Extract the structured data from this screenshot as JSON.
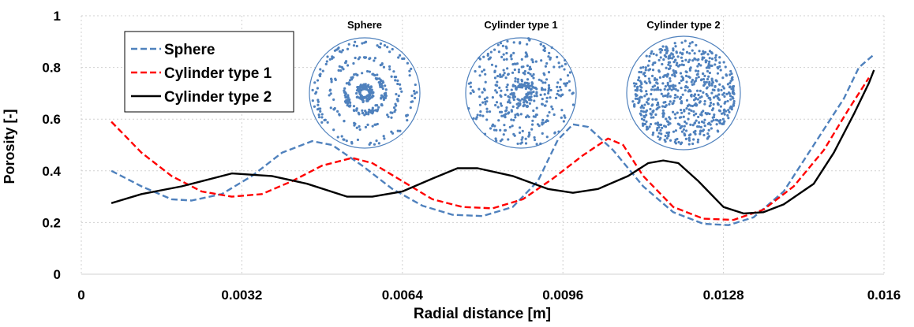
{
  "chart_data": {
    "type": "line",
    "xlabel": "Radial distance [m]",
    "ylabel": "Porosity [-]",
    "xlim": [
      0,
      0.016
    ],
    "xticks": [
      0,
      0.0032,
      0.0064,
      0.0096,
      0.0128,
      0.016
    ],
    "ylim": [
      0,
      1
    ],
    "yticks": [
      0,
      0.2,
      0.4,
      0.6,
      0.8,
      1
    ],
    "grid": true,
    "legend": "upper left",
    "annotations": [
      "Sphere",
      "Cylinder type 1",
      "Cylinder type 2"
    ],
    "series": [
      {
        "name": "Sphere",
        "color": "#4f81bd",
        "dash": "dashed",
        "x": [
          0.0006,
          0.0012,
          0.0018,
          0.0022,
          0.0028,
          0.0034,
          0.004,
          0.0046,
          0.005,
          0.0056,
          0.0062,
          0.0068,
          0.0074,
          0.008,
          0.0086,
          0.0091,
          0.0095,
          0.0098,
          0.0101,
          0.0106,
          0.0112,
          0.0118,
          0.0124,
          0.0129,
          0.0134,
          0.014,
          0.0146,
          0.0152,
          0.0155,
          0.0158
        ],
        "values": [
          0.4,
          0.34,
          0.29,
          0.285,
          0.31,
          0.38,
          0.47,
          0.515,
          0.5,
          0.42,
          0.33,
          0.265,
          0.23,
          0.225,
          0.26,
          0.36,
          0.52,
          0.58,
          0.57,
          0.48,
          0.34,
          0.24,
          0.195,
          0.19,
          0.22,
          0.32,
          0.5,
          0.68,
          0.8,
          0.85
        ]
      },
      {
        "name": "Cylinder type 1",
        "color": "#ff0000",
        "dash": "dashed",
        "x": [
          0.0006,
          0.0012,
          0.0018,
          0.0024,
          0.003,
          0.0036,
          0.0042,
          0.0048,
          0.0054,
          0.0058,
          0.0064,
          0.007,
          0.0076,
          0.0082,
          0.0088,
          0.0094,
          0.01,
          0.0105,
          0.0108,
          0.0112,
          0.0118,
          0.0124,
          0.013,
          0.0136,
          0.0142,
          0.0148,
          0.0153,
          0.0157
        ],
        "values": [
          0.59,
          0.47,
          0.38,
          0.32,
          0.3,
          0.31,
          0.36,
          0.42,
          0.45,
          0.43,
          0.36,
          0.29,
          0.26,
          0.255,
          0.29,
          0.37,
          0.46,
          0.525,
          0.5,
          0.38,
          0.26,
          0.215,
          0.21,
          0.25,
          0.34,
          0.48,
          0.64,
          0.76
        ]
      },
      {
        "name": "Cylinder type 2",
        "color": "#000000",
        "dash": "solid",
        "x": [
          0.0006,
          0.0012,
          0.002,
          0.003,
          0.0038,
          0.0045,
          0.0053,
          0.0058,
          0.0064,
          0.007,
          0.0075,
          0.0079,
          0.0086,
          0.0093,
          0.0098,
          0.0103,
          0.0109,
          0.0113,
          0.0116,
          0.0119,
          0.0123,
          0.0128,
          0.0132,
          0.0136,
          0.014,
          0.0146,
          0.015,
          0.0154,
          0.0157,
          0.0158
        ],
        "values": [
          0.275,
          0.31,
          0.34,
          0.39,
          0.38,
          0.35,
          0.3,
          0.3,
          0.32,
          0.37,
          0.41,
          0.41,
          0.38,
          0.33,
          0.315,
          0.33,
          0.38,
          0.43,
          0.44,
          0.43,
          0.36,
          0.26,
          0.235,
          0.24,
          0.27,
          0.35,
          0.47,
          0.62,
          0.74,
          0.79
        ]
      }
    ]
  }
}
